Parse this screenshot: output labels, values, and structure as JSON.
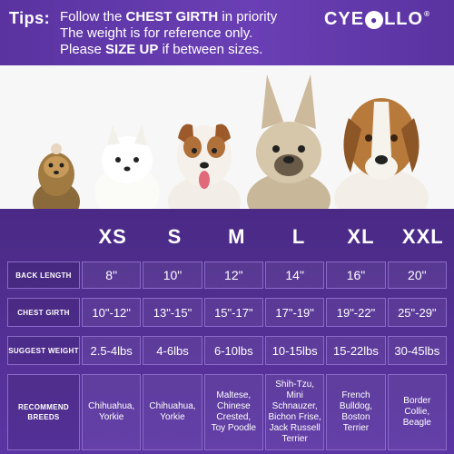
{
  "header": {
    "tips_label": "Tips:",
    "line1_prefix": "Follow the ",
    "line1_bold": "CHEST GIRTH",
    "line1_suffix": " in priority",
    "line2": "The weight is for reference only.",
    "line3_prefix": "Please ",
    "line3_bold": "SIZE UP",
    "line3_suffix": " if between sizes.",
    "brand_left": "CYE",
    "brand_right": "LLO",
    "brand_reg": "®"
  },
  "sizes": [
    "XS",
    "S",
    "M",
    "L",
    "XL",
    "XXL"
  ],
  "rows": {
    "back_length": {
      "label": "BACK LENGTH",
      "values": [
        "8\"",
        "10\"",
        "12\"",
        "14\"",
        "16\"",
        "20\""
      ]
    },
    "chest_girth": {
      "label": "CHEST GIRTH",
      "values": [
        "10\"-12\"",
        "13\"-15\"",
        "15\"-17\"",
        "17\"-19\"",
        "19\"-22\"",
        "25\"-29\""
      ]
    },
    "suggest_weight": {
      "label": "SUGGEST WEIGHT",
      "values": [
        "2.5-4lbs",
        "4-6lbs",
        "6-10lbs",
        "10-15lbs",
        "15-22lbs",
        "30-45lbs"
      ]
    },
    "recommend_breeds": {
      "label_line1": "RECOMMEND",
      "label_line2": "BREEDS",
      "values": [
        [
          "Chihuahua,",
          "Yorkie"
        ],
        [
          "Chihuahua,",
          "Yorkie"
        ],
        [
          "Maltese,",
          "Chinese",
          "Crested,",
          "Toy Poodle"
        ],
        [
          "Shih-Tzu,",
          "Mini Schnauzer,",
          "Bichon Frise,",
          "Jack Russell",
          "Terrier"
        ],
        [
          "French",
          "Bulldog,",
          "Boston Terrier"
        ],
        [
          "Border Collie,",
          "Beagle"
        ]
      ]
    }
  },
  "colors": {
    "purple_dark": "#4b2b86",
    "purple_mid": "#6a3fb5",
    "cell_border": "#8a6cc8",
    "photo_bg": "#f7f7f7"
  },
  "icons": [
    "paw-logo-icon"
  ]
}
